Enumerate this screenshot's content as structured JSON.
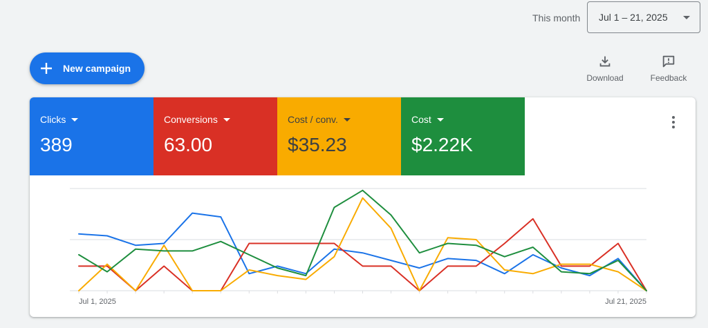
{
  "date_range": {
    "label": "This month",
    "value": "Jul 1 – 21, 2025"
  },
  "actions": {
    "new_campaign": "New campaign",
    "download": "Download",
    "feedback": "Feedback"
  },
  "metrics": [
    {
      "label": "Clicks",
      "value": "389",
      "color": "#1a73e8"
    },
    {
      "label": "Conversions",
      "value": "63.00",
      "color": "#d93025"
    },
    {
      "label": "Cost / conv.",
      "value": "$35.23",
      "color": "#f9ab00"
    },
    {
      "label": "Cost",
      "value": "$2.22K",
      "color": "#1e8e3e"
    }
  ],
  "chart_data": {
    "type": "line",
    "x": [
      "Jul 1, 2025",
      "Jul 2, 2025",
      "Jul 3, 2025",
      "Jul 4, 2025",
      "Jul 5, 2025",
      "Jul 6, 2025",
      "Jul 7, 2025",
      "Jul 8, 2025",
      "Jul 9, 2025",
      "Jul 10, 2025",
      "Jul 11, 2025",
      "Jul 12, 2025",
      "Jul 13, 2025",
      "Jul 14, 2025",
      "Jul 15, 2025",
      "Jul 16, 2025",
      "Jul 17, 2025",
      "Jul 18, 2025",
      "Jul 19, 2025",
      "Jul 20, 2025",
      "Jul 21, 2025"
    ],
    "x_tick_labels": [
      "Jul 1, 2025",
      "Jul 21, 2025"
    ],
    "series": [
      {
        "color": "#1a73e8",
        "values": [
          30,
          29,
          24,
          25,
          41,
          39,
          9,
          13,
          9,
          22,
          20,
          16,
          12,
          17,
          16,
          9,
          19,
          12,
          8,
          17,
          0
        ]
      },
      {
        "color": "#d93025",
        "values": [
          13,
          13,
          0,
          13,
          0,
          0,
          25,
          25,
          25,
          25,
          13,
          13,
          0,
          13,
          13,
          25,
          38,
          13,
          13,
          25,
          0
        ]
      },
      {
        "color": "#f9ab00",
        "values": [
          0,
          14,
          0,
          24,
          0,
          0,
          11,
          8,
          6,
          18,
          49,
          33,
          0,
          28,
          27,
          11,
          9,
          14,
          14,
          10,
          0
        ]
      },
      {
        "color": "#1e8e3e",
        "values": [
          19,
          10,
          22,
          21,
          21,
          26,
          19,
          12,
          8,
          44,
          53,
          40,
          20,
          25,
          24,
          18,
          23,
          10,
          9,
          16,
          0
        ]
      }
    ],
    "ylim": [
      0,
      54
    ],
    "grid": true,
    "legend": "none"
  }
}
